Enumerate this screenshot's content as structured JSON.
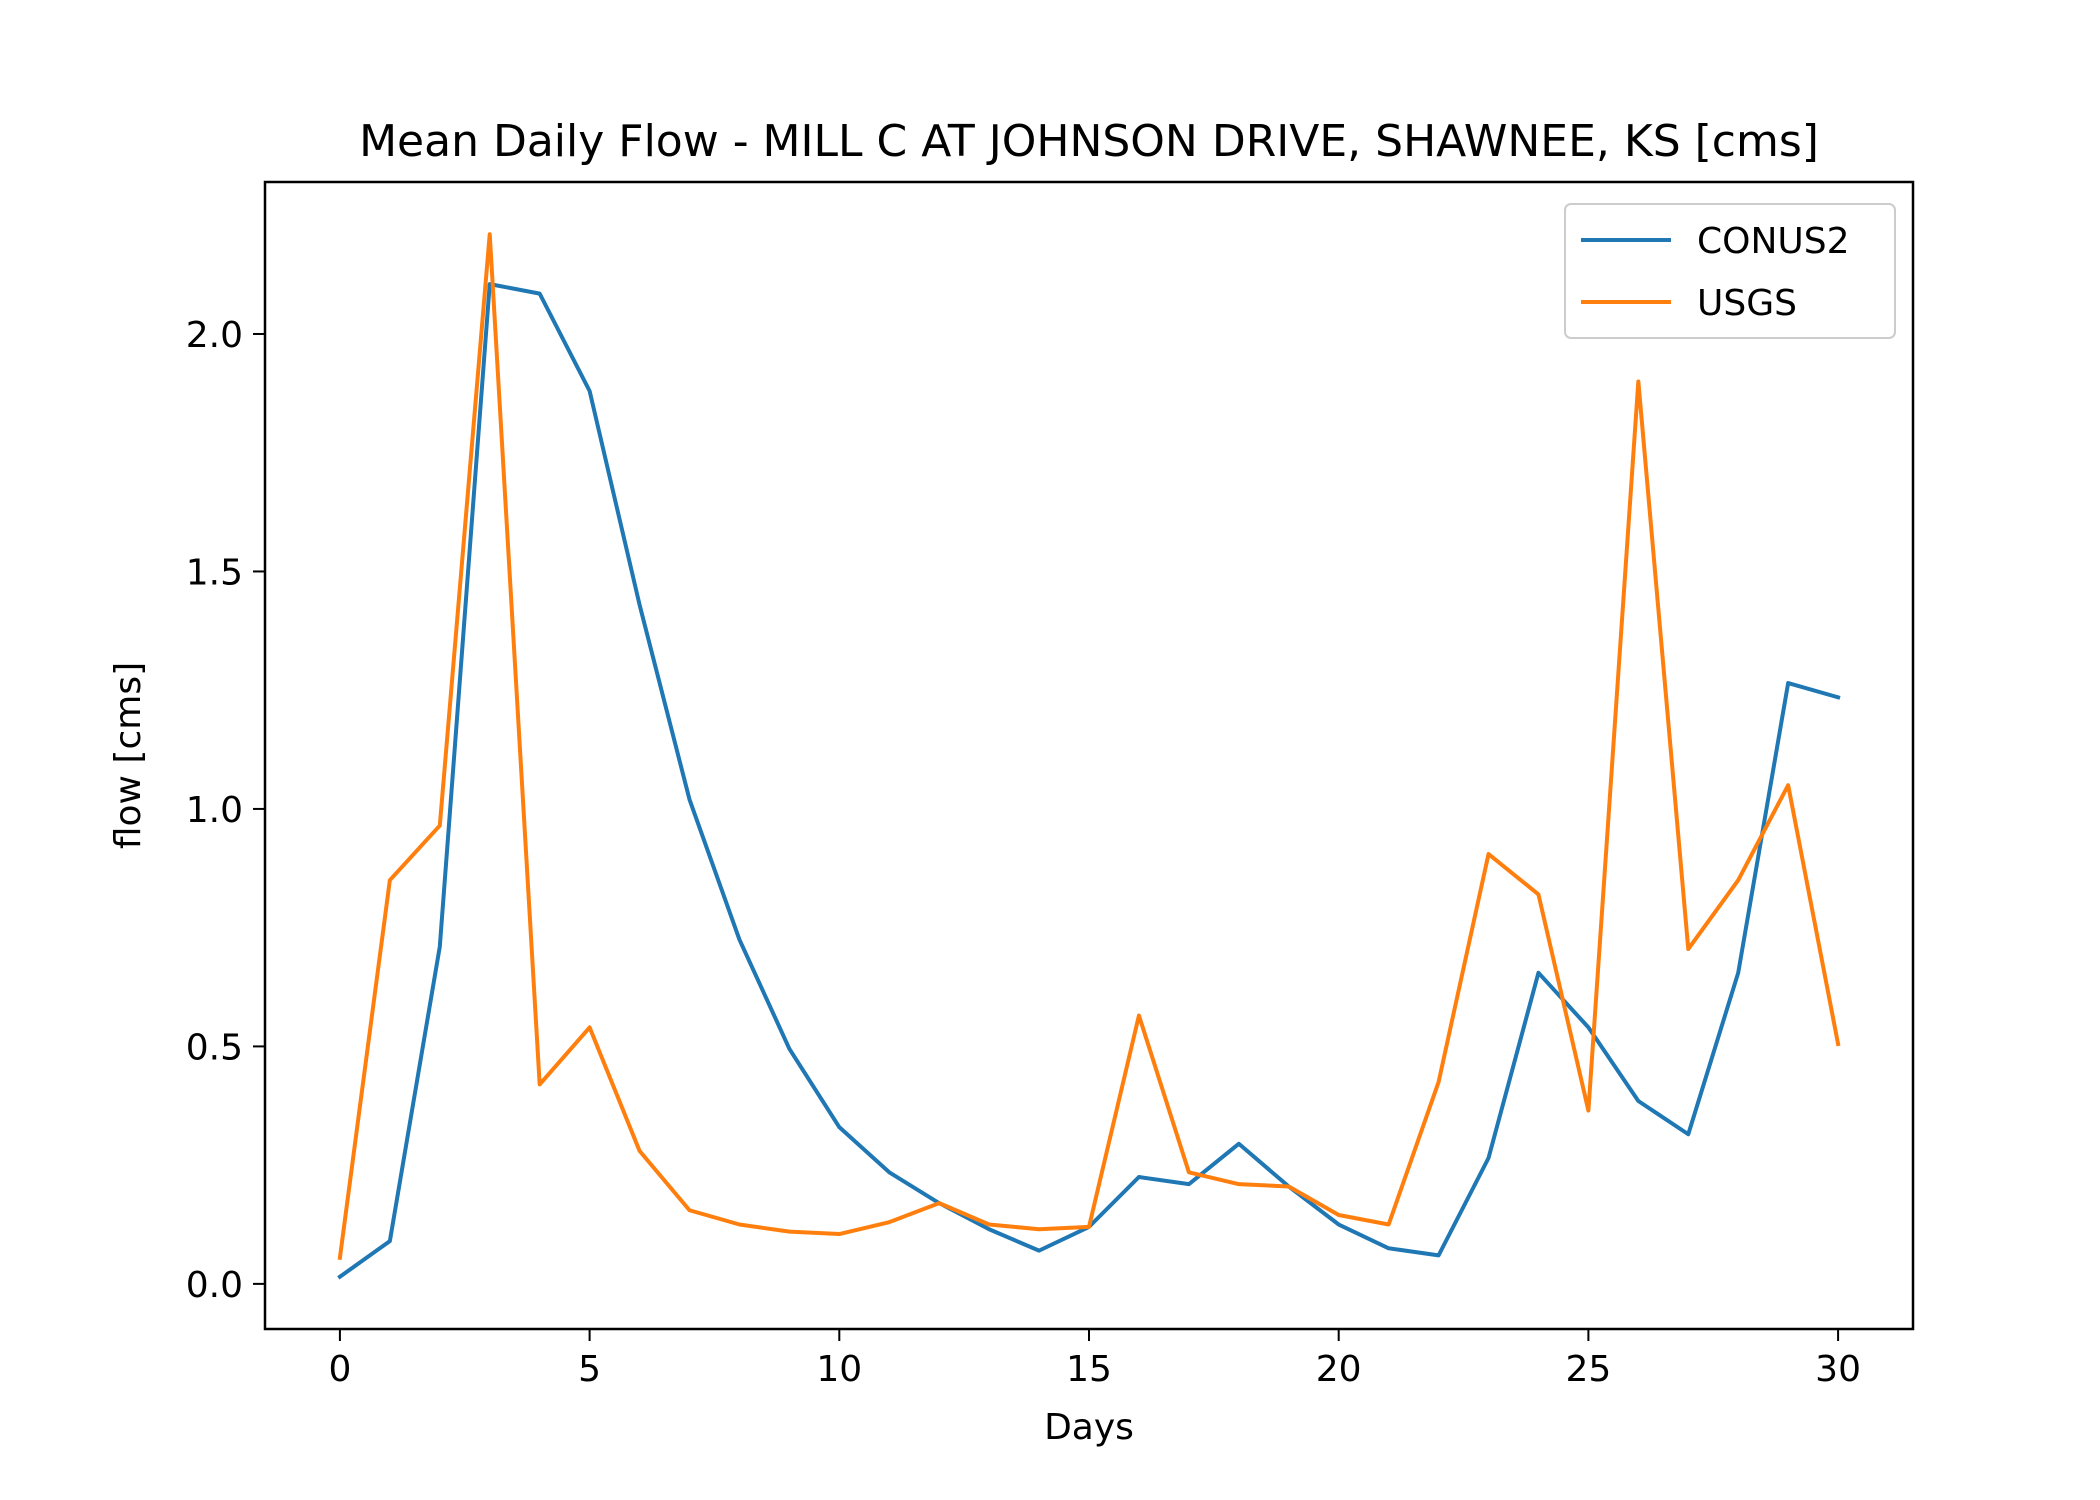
{
  "chart_data": {
    "type": "line",
    "title": "Mean Daily Flow - MILL C AT JOHNSON DRIVE, SHAWNEE, KS [cms]",
    "xlabel": "Days",
    "ylabel": "flow [cms]",
    "xlim": [
      -1.5,
      31.5
    ],
    "ylim": [
      -0.095,
      2.32
    ],
    "xticks": [
      0,
      5,
      10,
      15,
      20,
      25,
      30
    ],
    "yticks": [
      0.0,
      0.5,
      1.0,
      1.5,
      2.0
    ],
    "xtick_labels": [
      "0",
      "5",
      "10",
      "15",
      "20",
      "25",
      "30"
    ],
    "ytick_labels": [
      "0.0",
      "0.5",
      "1.0",
      "1.5",
      "2.0"
    ],
    "grid": false,
    "legend_position": "top-right",
    "x": [
      0,
      1,
      2,
      3,
      4,
      5,
      6,
      7,
      8,
      9,
      10,
      11,
      12,
      13,
      14,
      15,
      16,
      17,
      18,
      19,
      20,
      21,
      22,
      23,
      24,
      25,
      26,
      27,
      28,
      29,
      30
    ],
    "series": [
      {
        "name": "CONUS2",
        "color": "#1f77b4",
        "values": [
          0.015,
          0.09,
          0.71,
          2.105,
          2.085,
          1.88,
          1.43,
          1.02,
          0.725,
          0.495,
          0.33,
          0.235,
          0.17,
          0.115,
          0.07,
          0.12,
          0.225,
          0.21,
          0.295,
          0.205,
          0.125,
          0.075,
          0.06,
          0.265,
          0.655,
          0.54,
          0.385,
          0.315,
          0.655,
          1.265,
          1.235
        ]
      },
      {
        "name": "USGS",
        "color": "#ff7f0e",
        "values": [
          0.055,
          0.85,
          0.965,
          2.21,
          0.42,
          0.54,
          0.28,
          0.155,
          0.125,
          0.11,
          0.105,
          0.13,
          0.17,
          0.125,
          0.115,
          0.12,
          0.565,
          0.235,
          0.21,
          0.205,
          0.145,
          0.125,
          0.425,
          0.905,
          0.82,
          0.365,
          1.9,
          0.705,
          0.85,
          1.05,
          0.505
        ]
      }
    ]
  }
}
